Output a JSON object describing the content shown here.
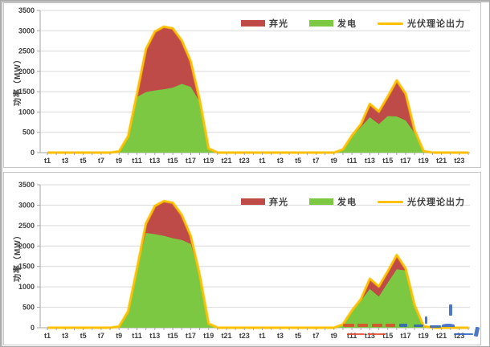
{
  "figure": {
    "description_label": ""
  },
  "y_axis": {
    "title": "功率（MW）",
    "ticks": [
      0,
      500,
      1000,
      1500,
      2000,
      2500,
      3000,
      3500
    ],
    "max": 3500
  },
  "x_axis": {
    "labels_shown": [
      "t1",
      "t3",
      "t5",
      "t7",
      "t9",
      "t11",
      "t13",
      "t15",
      "t17",
      "t19",
      "t21",
      "t23",
      "t1",
      "t3",
      "t5",
      "t7",
      "t9",
      "t11",
      "t13",
      "t15",
      "t17",
      "t19",
      "t21",
      "t23"
    ]
  },
  "legend": {
    "items": [
      {
        "label": "弃光",
        "marker": "swatch",
        "color": "#BE4B48"
      },
      {
        "label": "发电",
        "marker": "swatch",
        "color": "#7DC843"
      },
      {
        "label": "光伏理论出力",
        "marker": "line",
        "color": "#FFC000"
      }
    ]
  },
  "colors": {
    "curtailed": "#BE4B48",
    "generation": "#7DC843",
    "theoretical": "#FFC000",
    "gridline": "#D9D9D9",
    "axis": "#A6A6A6",
    "tick_text": "#3F3F3F",
    "panel_border": "#C6C6C6",
    "watermark_red": "#E0472E",
    "watermark_blue": "#2E5FBF"
  },
  "chart_data": [
    {
      "type": "area",
      "title": "",
      "stacked": true,
      "ylabel": "功率（MW）",
      "ylim": [
        0,
        3500
      ],
      "grid": true,
      "legend_position": "top",
      "categories": [
        "t1",
        "t2",
        "t3",
        "t4",
        "t5",
        "t6",
        "t7",
        "t8",
        "t9",
        "t10",
        "t11",
        "t12",
        "t13",
        "t14",
        "t15",
        "t16",
        "t17",
        "t18",
        "t19",
        "t20",
        "t21",
        "t22",
        "t23",
        "t24",
        "t1",
        "t2",
        "t3",
        "t4",
        "t5",
        "t6",
        "t7",
        "t8",
        "t9",
        "t10",
        "t11",
        "t12",
        "t13",
        "t14",
        "t15",
        "t16",
        "t17",
        "t18",
        "t19",
        "t20",
        "t21",
        "t22",
        "t23",
        "t24"
      ],
      "series": [
        {
          "name": "发电",
          "role": "generation",
          "color": "#7DC843",
          "values": [
            0,
            0,
            0,
            0,
            0,
            0,
            0,
            0,
            30,
            400,
            1370,
            1490,
            1530,
            1560,
            1600,
            1690,
            1620,
            1250,
            100,
            0,
            0,
            0,
            0,
            0,
            0,
            0,
            0,
            0,
            0,
            0,
            0,
            0,
            0,
            80,
            400,
            630,
            870,
            700,
            900,
            890,
            790,
            480,
            40,
            0,
            0,
            0,
            0,
            0
          ]
        },
        {
          "name": "弃光",
          "role": "curtailed",
          "color": "#BE4B48",
          "values": [
            0,
            0,
            0,
            0,
            0,
            0,
            0,
            0,
            0,
            0,
            80,
            1060,
            1450,
            1540,
            1460,
            1070,
            630,
            50,
            0,
            0,
            0,
            0,
            0,
            0,
            0,
            0,
            0,
            0,
            0,
            0,
            0,
            0,
            0,
            0,
            20,
            70,
            330,
            310,
            480,
            890,
            660,
            70,
            0,
            0,
            0,
            0,
            0,
            0
          ]
        },
        {
          "name": "光伏理论出力",
          "role": "theoretical",
          "color": "#FFC000",
          "line": true,
          "values": [
            0,
            0,
            0,
            0,
            0,
            0,
            0,
            0,
            30,
            400,
            1450,
            2550,
            2980,
            3100,
            3060,
            2760,
            2250,
            1300,
            100,
            0,
            0,
            0,
            0,
            0,
            0,
            0,
            0,
            0,
            0,
            0,
            0,
            0,
            0,
            80,
            420,
            700,
            1200,
            1010,
            1380,
            1780,
            1450,
            550,
            40,
            0,
            0,
            0,
            0,
            0
          ]
        }
      ]
    },
    {
      "type": "area",
      "title": "",
      "stacked": true,
      "ylabel": "功率（MW）",
      "ylim": [
        0,
        3500
      ],
      "grid": true,
      "legend_position": "top",
      "categories": [
        "t1",
        "t2",
        "t3",
        "t4",
        "t5",
        "t6",
        "t7",
        "t8",
        "t9",
        "t10",
        "t11",
        "t12",
        "t13",
        "t14",
        "t15",
        "t16",
        "t17",
        "t18",
        "t19",
        "t20",
        "t21",
        "t22",
        "t23",
        "t24",
        "t1",
        "t2",
        "t3",
        "t4",
        "t5",
        "t6",
        "t7",
        "t8",
        "t9",
        "t10",
        "t11",
        "t12",
        "t13",
        "t14",
        "t15",
        "t16",
        "t17",
        "t18",
        "t19",
        "t20",
        "t21",
        "t22",
        "t23",
        "t24"
      ],
      "series": [
        {
          "name": "发电",
          "role": "generation",
          "color": "#7DC843",
          "values": [
            0,
            0,
            0,
            0,
            0,
            0,
            0,
            0,
            30,
            400,
            1450,
            2320,
            2290,
            2250,
            2190,
            2150,
            2050,
            1300,
            100,
            0,
            0,
            0,
            0,
            0,
            0,
            0,
            0,
            0,
            0,
            0,
            0,
            0,
            0,
            80,
            420,
            660,
            950,
            760,
            1100,
            1430,
            1400,
            550,
            40,
            0,
            0,
            0,
            0,
            0
          ]
        },
        {
          "name": "弃光",
          "role": "curtailed",
          "color": "#BE4B48",
          "values": [
            0,
            0,
            0,
            0,
            0,
            0,
            0,
            0,
            0,
            0,
            0,
            230,
            690,
            850,
            870,
            610,
            200,
            0,
            0,
            0,
            0,
            0,
            0,
            0,
            0,
            0,
            0,
            0,
            0,
            0,
            0,
            0,
            0,
            0,
            0,
            40,
            250,
            250,
            280,
            350,
            50,
            0,
            0,
            0,
            0,
            0,
            0,
            0
          ]
        },
        {
          "name": "光伏理论出力",
          "role": "theoretical",
          "color": "#FFC000",
          "line": true,
          "values": [
            0,
            0,
            0,
            0,
            0,
            0,
            0,
            0,
            30,
            400,
            1450,
            2550,
            2980,
            3100,
            3060,
            2760,
            2250,
            1300,
            100,
            0,
            0,
            0,
            0,
            0,
            0,
            0,
            0,
            0,
            0,
            0,
            0,
            0,
            0,
            80,
            420,
            700,
            1200,
            1010,
            1380,
            1780,
            1450,
            550,
            40,
            0,
            0,
            0,
            0,
            0
          ]
        }
      ]
    }
  ]
}
